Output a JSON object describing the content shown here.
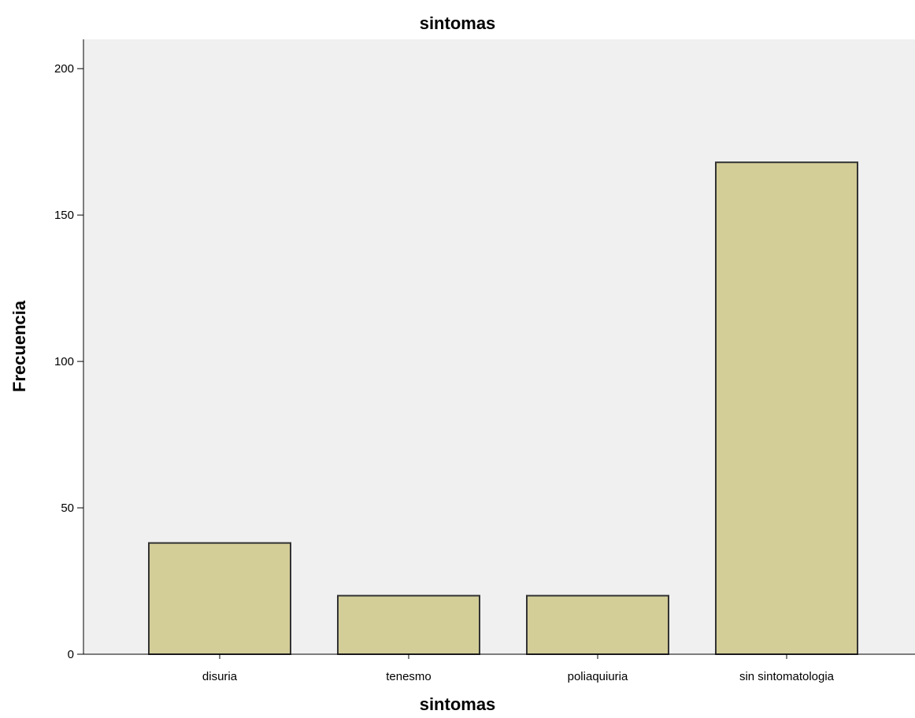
{
  "chart_data": {
    "type": "bar",
    "title": "sintomas",
    "xlabel": "sintomas",
    "ylabel": "Frecuencia",
    "categories": [
      "disuria",
      "tenesmo",
      "poliaquiuria",
      "sin sintomatologia"
    ],
    "values": [
      38,
      20,
      20,
      168
    ],
    "ylim": [
      0,
      210
    ],
    "yticks": [
      "0",
      "50",
      "100",
      "150",
      "200"
    ],
    "grid": false,
    "colors": {
      "bar_fill": "#d3cd98",
      "bar_stroke": "#333333",
      "plot_background": "#f0f0f0",
      "axis": "#000000"
    }
  }
}
